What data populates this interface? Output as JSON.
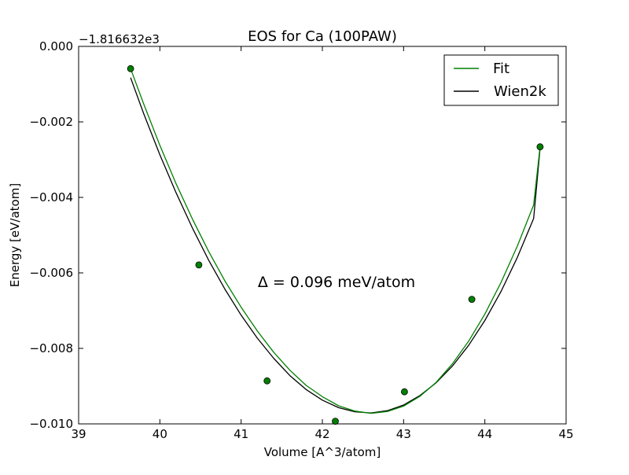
{
  "chart_data": {
    "type": "line",
    "title": "EOS for Ca (100PAW)",
    "xlabel": "Volume [A^3/atom]",
    "ylabel": "Energy [eV/atom]",
    "y_offset_label": "−1.816632e3",
    "xlim": [
      39,
      45
    ],
    "ylim": [
      -0.01,
      0.0
    ],
    "x_ticks": [
      39,
      40,
      41,
      42,
      43,
      44,
      45
    ],
    "x_tick_labels": [
      "39",
      "40",
      "41",
      "42",
      "43",
      "44",
      "45"
    ],
    "y_ticks": [
      0.0,
      -0.002,
      -0.004,
      -0.006,
      -0.008,
      -0.01
    ],
    "y_tick_labels": [
      "0.000",
      "−0.002",
      "−0.004",
      "−0.006",
      "−0.008",
      "−0.010"
    ],
    "grid": false,
    "legend_position": "upper right",
    "annotation": "Δ = 0.096 meV/atom",
    "series": [
      {
        "name": "Fit",
        "kind": "line",
        "color": "#008000",
        "x": [
          39.64,
          39.8,
          40.0,
          40.2,
          40.4,
          40.6,
          40.8,
          41.0,
          41.2,
          41.4,
          41.6,
          41.8,
          42.0,
          42.2,
          42.4,
          42.6,
          42.8,
          43.0,
          43.2,
          43.4,
          43.6,
          43.8,
          44.0,
          44.2,
          44.4,
          44.6,
          44.68
        ],
        "y": [
          -0.00059,
          -0.00152,
          -0.00262,
          -0.00364,
          -0.00457,
          -0.00543,
          -0.00621,
          -0.00691,
          -0.00754,
          -0.0081,
          -0.00858,
          -0.00898,
          -0.00928,
          -0.00952,
          -0.00966,
          -0.00972,
          -0.00967,
          -0.00953,
          -0.00927,
          -0.0089,
          -0.00841,
          -0.00781,
          -0.00709,
          -0.00625,
          -0.00529,
          -0.0042,
          -0.00266
        ]
      },
      {
        "name": "Wien2k",
        "kind": "line",
        "color": "#000000",
        "x": [
          39.64,
          39.8,
          40.0,
          40.2,
          40.4,
          40.6,
          40.8,
          41.0,
          41.2,
          41.4,
          41.6,
          41.8,
          42.0,
          42.2,
          42.4,
          42.6,
          42.8,
          43.0,
          43.2,
          43.4,
          43.6,
          43.8,
          44.0,
          44.2,
          44.4,
          44.6,
          44.68
        ],
        "y": [
          -0.00083,
          -0.00178,
          -0.00287,
          -0.00388,
          -0.00481,
          -0.00566,
          -0.00643,
          -0.00712,
          -0.00773,
          -0.00826,
          -0.00872,
          -0.00909,
          -0.00937,
          -0.00957,
          -0.00968,
          -0.00971,
          -0.00965,
          -0.0095,
          -0.00925,
          -0.00891,
          -0.00847,
          -0.00792,
          -0.00726,
          -0.00649,
          -0.00559,
          -0.00456,
          -0.0027
        ]
      },
      {
        "kind": "points",
        "color": "#008000",
        "x": [
          39.64,
          40.48,
          41.32,
          42.16,
          43.01,
          43.84,
          44.68
        ],
        "y": [
          -0.00059,
          -0.00579,
          -0.00886,
          -0.00993,
          -0.00915,
          -0.0067,
          -0.00266
        ]
      }
    ]
  }
}
